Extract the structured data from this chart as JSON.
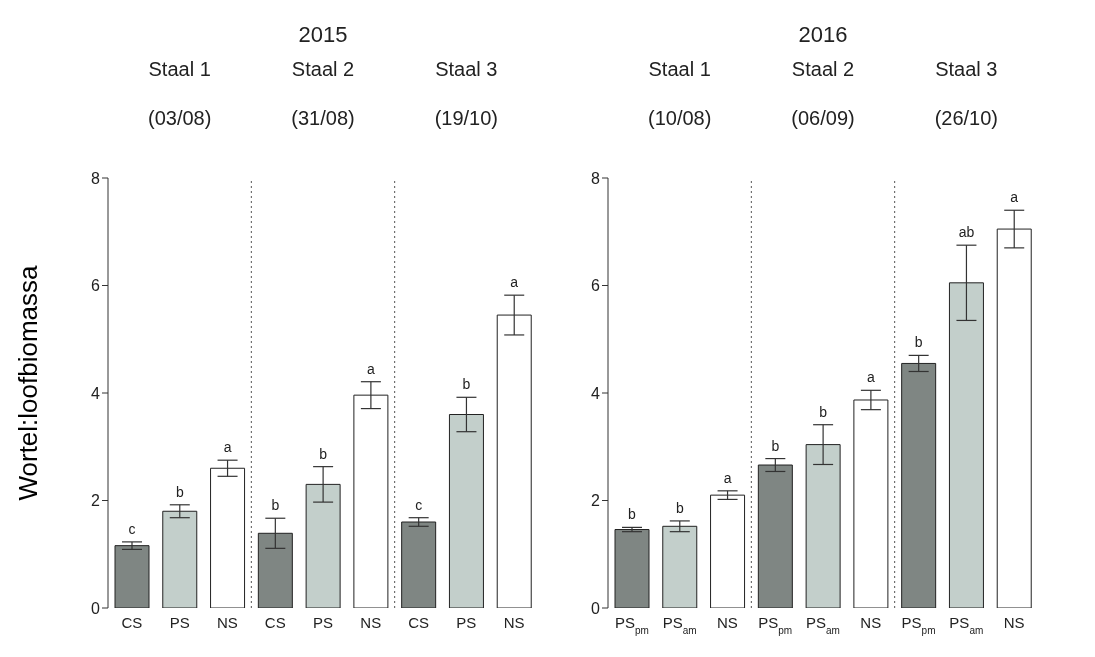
{
  "chart_data": [
    {
      "type": "bar",
      "title": "2015",
      "ylabel": "Wortel:loofbiomassa",
      "annotations": [
        "Staal 1",
        "Staal 2",
        "Staal 3",
        "(03/08)",
        "(31/08)",
        "(19/10)"
      ],
      "categories": [
        "CS",
        "PS",
        "NS",
        "CS",
        "PS",
        "NS",
        "CS",
        "PS",
        "NS"
      ],
      "values": [
        1.16,
        1.8,
        2.6,
        1.39,
        2.3,
        3.96,
        1.6,
        3.6,
        5.45
      ],
      "errors": [
        0.07,
        0.12,
        0.15,
        0.28,
        0.33,
        0.25,
        0.08,
        0.32,
        0.37
      ],
      "value_labels": [
        "c",
        "b",
        "a",
        "b",
        "b",
        "a",
        "c",
        "b",
        "a"
      ],
      "colors": [
        "#7f8683",
        "#c3cfcb",
        "#ffffff",
        "#7f8683",
        "#c3cfcb",
        "#ffffff",
        "#7f8683",
        "#c3cfcb",
        "#ffffff"
      ],
      "ylim": [
        0,
        8
      ],
      "yticks": [
        0,
        2,
        4,
        6,
        8
      ]
    },
    {
      "type": "bar",
      "title": "2016",
      "annotations": [
        "Staal 1",
        "Staal 2",
        "Staal 3",
        "(10/08)",
        "(06/09)",
        "(26/10)"
      ],
      "categories": [
        "PS$_{pm}$",
        "PS$_{am}$",
        "NS",
        "PS$_{pm}$",
        "PS$_{am}$",
        "NS",
        "PS$_{pm}$",
        "PS$_{am}$",
        "NS"
      ],
      "values": [
        1.46,
        1.52,
        2.1,
        2.66,
        3.04,
        3.87,
        4.55,
        6.05,
        7.05
      ],
      "errors": [
        0.04,
        0.1,
        0.08,
        0.12,
        0.37,
        0.18,
        0.15,
        0.7,
        0.35
      ],
      "value_labels": [
        "b",
        "b",
        "a",
        "b",
        "b",
        "a",
        "b",
        "ab",
        "a"
      ],
      "colors": [
        "#7f8683",
        "#c3cfcb",
        "#ffffff",
        "#7f8683",
        "#c3cfcb",
        "#ffffff",
        "#7f8683",
        "#c3cfcb",
        "#ffffff"
      ],
      "ylim": [
        0,
        8
      ],
      "yticks": [
        0,
        2,
        4,
        6,
        8
      ]
    }
  ]
}
